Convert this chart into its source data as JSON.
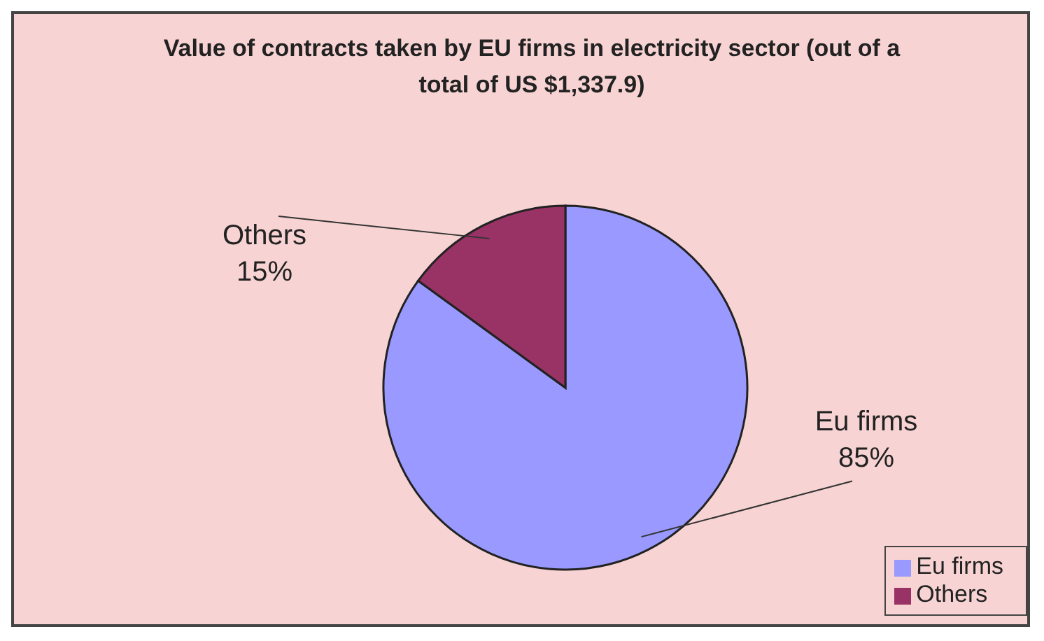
{
  "chart_data": {
    "type": "pie",
    "title": "Value of contracts taken by EU firms in electricity sector (out of a total of US $1,337.9)",
    "categories": [
      "Eu firms",
      "Others"
    ],
    "values": [
      85,
      15
    ],
    "value_labels": [
      "85%",
      "15%"
    ],
    "colors": [
      "#9999ff",
      "#993366"
    ],
    "legend": "bottom right"
  }
}
